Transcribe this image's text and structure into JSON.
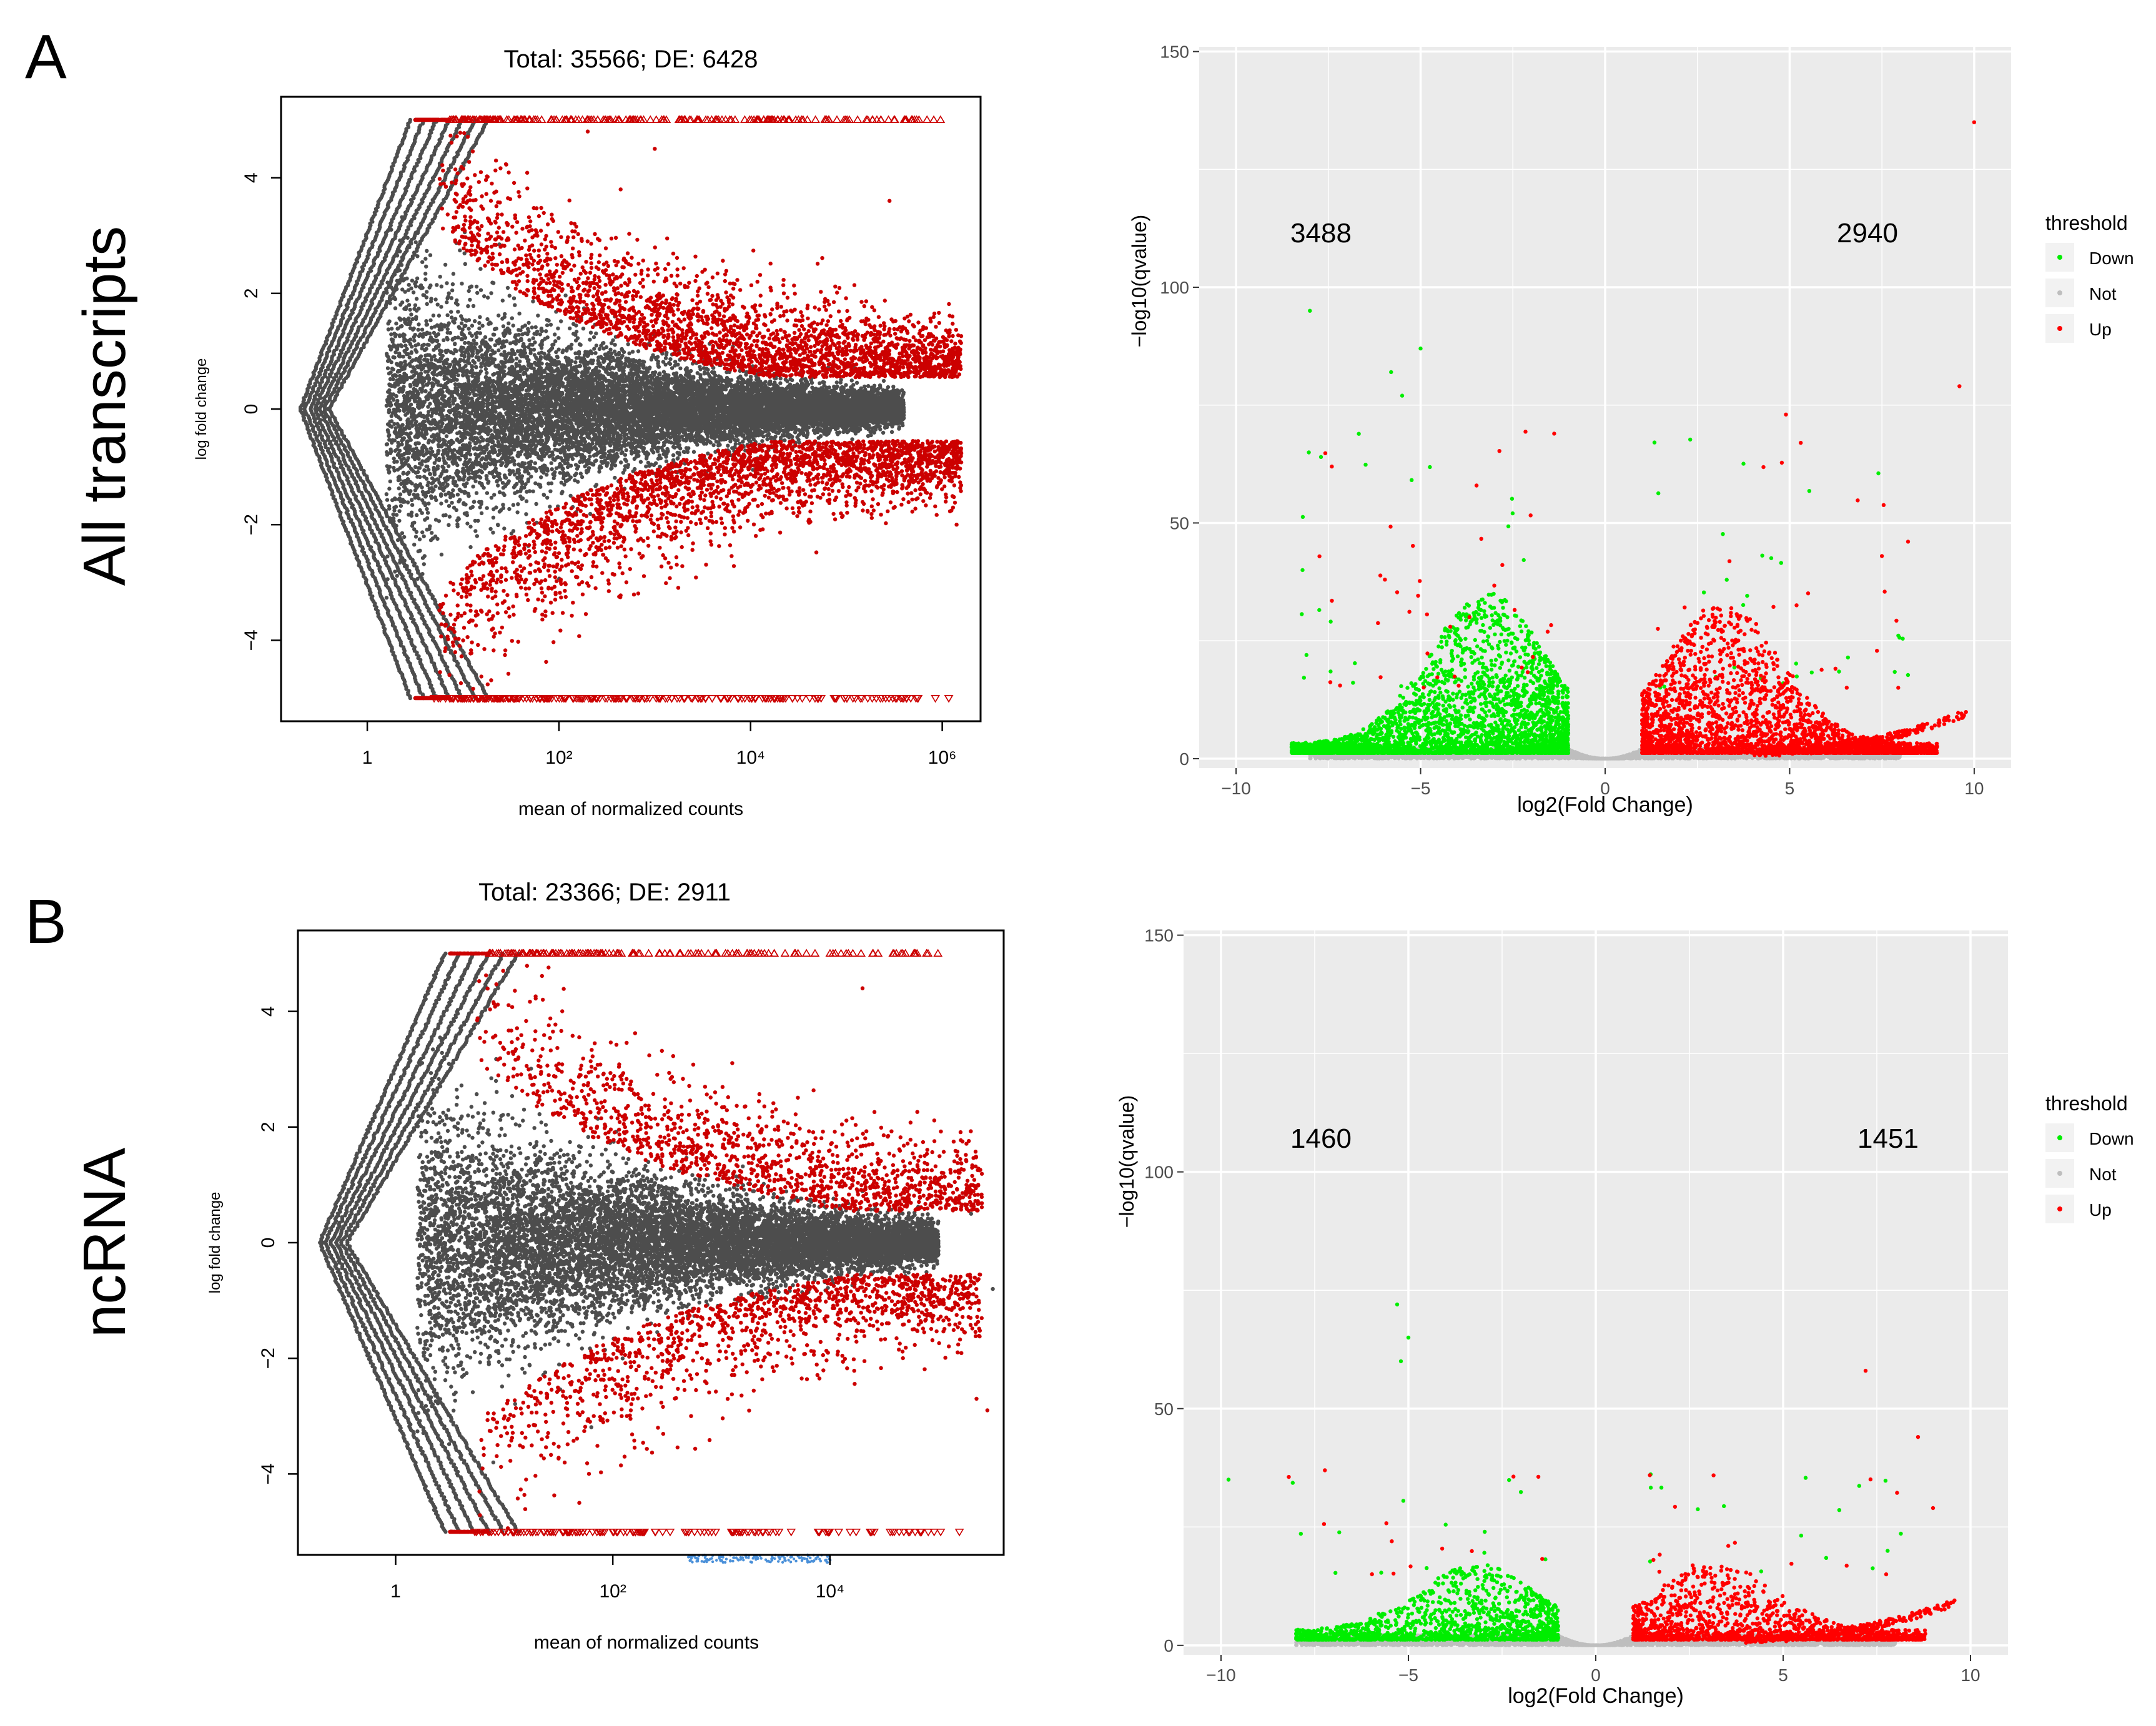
{
  "figure": {
    "panel_A_label": "A",
    "panel_B_label": "B",
    "row_A_title": "All transcripts",
    "row_B_title": "ncRNA"
  },
  "colors": {
    "ma_gray": "#4d4d4d",
    "ma_red": "#cc0000",
    "volcano_bg": "#ebebeb",
    "grid": "#ffffff",
    "down": "#00ee00",
    "not": "#bebebe",
    "up": "#ff0000",
    "legend_key_bg": "#f2f2f2",
    "axis_text": "#4d4d4d",
    "blue_marks": "#4a90d9"
  },
  "chart_data": [
    {
      "id": "ma-A",
      "type": "scatter",
      "title": "Total: 35566; DE: 6428",
      "total": 35566,
      "de": 6428,
      "xlabel": "mean of normalized counts",
      "ylabel": "log fold change",
      "x_scale": "log10",
      "xlim_log10": [
        -0.9,
        6.4
      ],
      "ylim": [
        -5.4,
        5.4
      ],
      "x_ticks": [
        "1",
        "10²",
        "10⁴",
        "10⁶"
      ],
      "x_tick_values_log10": [
        0,
        2,
        4,
        6
      ],
      "y_ticks": [
        -4,
        -2,
        0,
        2,
        4
      ],
      "series": [
        {
          "name": "not significant",
          "color": "#4d4d4d",
          "marker": "dot"
        },
        {
          "name": "significant (DE)",
          "color": "#cc0000",
          "marker": "dot",
          "count": 6428
        },
        {
          "name": "clipped at +5",
          "color": "#cc0000",
          "marker": "triangle-up",
          "y": 5
        },
        {
          "name": "clipped at -5",
          "color": "#cc0000",
          "marker": "triangle-down",
          "y": -5
        }
      ],
      "sample_points": [
        [
          2.3,
          4.8
        ],
        [
          3.0,
          4.5
        ],
        [
          5.45,
          3.6
        ],
        [
          6.0,
          -0.7
        ],
        [
          6.1,
          -1.2
        ],
        [
          6.15,
          -2.0
        ],
        [
          1.3,
          3.9
        ],
        [
          0.9,
          -3.8
        ]
      ]
    },
    {
      "id": "volcano-A",
      "type": "scatter",
      "xlabel": "log2(Fold Change)",
      "ylabel": "−log10(qvalue)",
      "xlim": [
        -11,
        11
      ],
      "ylim": [
        -2,
        151
      ],
      "x_ticks": [
        -10,
        -5,
        0,
        5,
        10
      ],
      "y_ticks": [
        0,
        50,
        100,
        150
      ],
      "down_count": "3488",
      "up_count": "2940",
      "legend_title": "threshold",
      "legend_entries": [
        "Down",
        "Not",
        "Up"
      ],
      "series": [
        {
          "name": "Down",
          "color": "#00ee00"
        },
        {
          "name": "Not",
          "color": "#bebebe"
        },
        {
          "name": "Up",
          "color": "#ff0000"
        }
      ],
      "sample_points": [
        [
          -8.0,
          95
        ],
        [
          -5.0,
          87
        ],
        [
          -5.5,
          77
        ],
        [
          -5.8,
          82
        ],
        [
          10.0,
          135
        ],
        [
          9.6,
          79
        ],
        [
          5.3,
          67
        ],
        [
          4.9,
          73
        ],
        [
          -8.2,
          40
        ],
        [
          -7.7,
          64
        ]
      ]
    },
    {
      "id": "ma-B",
      "type": "scatter",
      "title": "Total: 23366; DE: 2911",
      "total": 23366,
      "de": 2911,
      "xlabel": "mean of normalized counts",
      "ylabel": "log fold change",
      "x_scale": "log10",
      "xlim_log10": [
        -0.9,
        5.6
      ],
      "ylim": [
        -5.4,
        5.4
      ],
      "x_ticks": [
        "1",
        "10²",
        "10⁴"
      ],
      "x_tick_values_log10": [
        0,
        2,
        4
      ],
      "y_ticks": [
        -4,
        -2,
        0,
        2,
        4
      ],
      "series": [
        {
          "name": "not significant",
          "color": "#4d4d4d",
          "marker": "dot"
        },
        {
          "name": "significant (DE)",
          "color": "#cc0000",
          "marker": "dot",
          "count": 2911
        },
        {
          "name": "clipped at +5",
          "color": "#cc0000",
          "marker": "triangle-up",
          "y": 5
        },
        {
          "name": "clipped at -5",
          "color": "#cc0000",
          "marker": "triangle-down",
          "y": -5
        }
      ],
      "sample_points": [
        [
          4.3,
          4.4
        ],
        [
          5.3,
          0.5
        ],
        [
          5.5,
          -0.8
        ],
        [
          5.35,
          -2.7
        ],
        [
          5.45,
          -2.9
        ],
        [
          0.9,
          -3.8
        ]
      ]
    },
    {
      "id": "volcano-B",
      "type": "scatter",
      "xlabel": "log2(Fold Change)",
      "ylabel": "−log10(qvalue)",
      "xlim": [
        -11,
        11
      ],
      "ylim": [
        -2,
        151
      ],
      "x_ticks": [
        -10,
        -5,
        0,
        5,
        10
      ],
      "y_ticks": [
        0,
        50,
        100,
        150
      ],
      "down_count": "1460",
      "up_count": "1451",
      "legend_title": "threshold",
      "legend_entries": [
        "Down",
        "Not",
        "Up"
      ],
      "series": [
        {
          "name": "Down",
          "color": "#00ee00"
        },
        {
          "name": "Not",
          "color": "#bebebe"
        },
        {
          "name": "Up",
          "color": "#ff0000"
        }
      ],
      "sample_points": [
        [
          -5.3,
          72
        ],
        [
          -5.0,
          65
        ],
        [
          -5.2,
          60
        ],
        [
          7.2,
          58
        ],
        [
          8.6,
          44
        ],
        [
          -9.8,
          35
        ],
        [
          9.0,
          29
        ]
      ]
    }
  ]
}
